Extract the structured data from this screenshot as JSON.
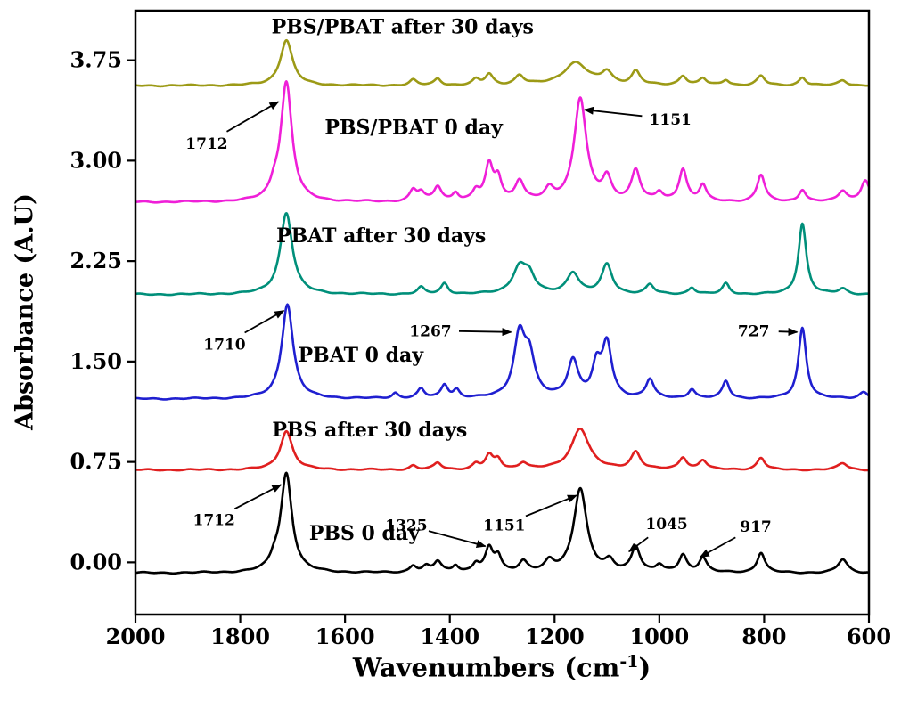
{
  "figure": {
    "background": "#ffffff",
    "frame_color": "#000000"
  },
  "chart_data": {
    "type": "line",
    "title": "",
    "xlabel": "Wavenumbers (cm⁻¹)",
    "xlabel_parts": {
      "pre": "Wavenumbers (cm",
      "sup": "-1",
      "post": ")"
    },
    "ylabel": "Absorbance (A.U)",
    "xlim": [
      2000,
      600
    ],
    "ylim": [
      -0.39,
      4.12
    ],
    "x_axis_reversed": true,
    "grid": false,
    "legend_position": "inline-labels",
    "x_ticks": [
      2000,
      1800,
      1600,
      1400,
      1200,
      1000,
      800,
      600
    ],
    "x_tick_labels": [
      "2000",
      "1800",
      "1600",
      "1400",
      "1200",
      "1000",
      "800",
      "600"
    ],
    "y_ticks": [
      0.0,
      0.75,
      1.5,
      2.25,
      3.0,
      3.75
    ],
    "y_tick_labels": [
      "0.00",
      "0.75",
      "1.50",
      "2.25",
      "3.00",
      "3.75"
    ],
    "peaks_format": "[center_wavenumber_cm-1, amplitude_AU, half_width_cm-1]",
    "series": [
      {
        "name": "PBS 0 day",
        "color": "#000000",
        "baseline": -0.08,
        "label": {
          "text": "PBS 0 day",
          "x": 1563,
          "y": 0.17
        },
        "peaks": [
          [
            1735,
            0.06,
            9
          ],
          [
            1712,
            0.74,
            13
          ],
          [
            1470,
            0.05,
            8
          ],
          [
            1445,
            0.04,
            8
          ],
          [
            1423,
            0.08,
            9
          ],
          [
            1389,
            0.05,
            7
          ],
          [
            1350,
            0.06,
            8
          ],
          [
            1325,
            0.17,
            9
          ],
          [
            1308,
            0.11,
            8
          ],
          [
            1260,
            0.08,
            10
          ],
          [
            1210,
            0.07,
            10
          ],
          [
            1151,
            0.63,
            15
          ],
          [
            1095,
            0.07,
            10
          ],
          [
            1045,
            0.19,
            10
          ],
          [
            1000,
            0.05,
            8
          ],
          [
            955,
            0.13,
            9
          ],
          [
            917,
            0.11,
            9
          ],
          [
            806,
            0.15,
            9
          ],
          [
            650,
            0.1,
            11
          ]
        ]
      },
      {
        "name": "PBS after 30 days",
        "color": "#e01f1f",
        "baseline": 0.69,
        "label": {
          "text": "PBS after 30 days",
          "x": 1553,
          "y": 0.94
        },
        "peaks": [
          [
            1712,
            0.29,
            14
          ],
          [
            1470,
            0.03,
            8
          ],
          [
            1423,
            0.05,
            9
          ],
          [
            1350,
            0.04,
            8
          ],
          [
            1325,
            0.1,
            9
          ],
          [
            1308,
            0.07,
            8
          ],
          [
            1260,
            0.05,
            10
          ],
          [
            1151,
            0.31,
            20
          ],
          [
            1045,
            0.13,
            11
          ],
          [
            955,
            0.09,
            9
          ],
          [
            917,
            0.07,
            9
          ],
          [
            806,
            0.09,
            9
          ],
          [
            650,
            0.05,
            11
          ]
        ]
      },
      {
        "name": "PBAT 0 day",
        "color": "#1f1fd0",
        "baseline": 1.22,
        "label": {
          "text": "PBAT 0 day",
          "x": 1570,
          "y": 1.5
        },
        "peaks": [
          [
            1710,
            0.71,
            13
          ],
          [
            1504,
            0.04,
            7
          ],
          [
            1455,
            0.07,
            8
          ],
          [
            1410,
            0.1,
            8
          ],
          [
            1387,
            0.06,
            7
          ],
          [
            1267,
            0.46,
            13
          ],
          [
            1248,
            0.28,
            12
          ],
          [
            1165,
            0.28,
            12
          ],
          [
            1120,
            0.22,
            10
          ],
          [
            1100,
            0.4,
            11
          ],
          [
            1018,
            0.14,
            9
          ],
          [
            938,
            0.07,
            8
          ],
          [
            873,
            0.13,
            8
          ],
          [
            727,
            0.53,
            9
          ],
          [
            610,
            0.05,
            10
          ]
        ]
      },
      {
        "name": "PBAT after 30 days",
        "color": "#008f7a",
        "baseline": 2.0,
        "label": {
          "text": "PBAT after 30 days",
          "x": 1531,
          "y": 2.39
        },
        "peaks": [
          [
            1712,
            0.61,
            14
          ],
          [
            1455,
            0.05,
            8
          ],
          [
            1410,
            0.08,
            8
          ],
          [
            1267,
            0.2,
            16
          ],
          [
            1248,
            0.12,
            12
          ],
          [
            1165,
            0.16,
            14
          ],
          [
            1100,
            0.22,
            12
          ],
          [
            1018,
            0.07,
            9
          ],
          [
            938,
            0.05,
            8
          ],
          [
            873,
            0.08,
            8
          ],
          [
            727,
            0.53,
            9
          ],
          [
            650,
            0.04,
            10
          ]
        ]
      },
      {
        "name": "PBS/PBAT 0 day",
        "color": "#ef1fd8",
        "baseline": 2.69,
        "label": {
          "text": "PBS/PBAT 0 day",
          "x": 1469,
          "y": 3.2
        },
        "peaks": [
          [
            1735,
            0.07,
            9
          ],
          [
            1712,
            0.89,
            13
          ],
          [
            1470,
            0.08,
            8
          ],
          [
            1455,
            0.06,
            8
          ],
          [
            1423,
            0.11,
            9
          ],
          [
            1389,
            0.06,
            7
          ],
          [
            1350,
            0.07,
            8
          ],
          [
            1325,
            0.26,
            9
          ],
          [
            1308,
            0.16,
            8
          ],
          [
            1267,
            0.15,
            10
          ],
          [
            1210,
            0.08,
            10
          ],
          [
            1151,
            0.77,
            14
          ],
          [
            1100,
            0.16,
            10
          ],
          [
            1045,
            0.23,
            10
          ],
          [
            1000,
            0.06,
            8
          ],
          [
            955,
            0.24,
            9
          ],
          [
            917,
            0.12,
            8
          ],
          [
            806,
            0.2,
            9
          ],
          [
            727,
            0.09,
            8
          ],
          [
            650,
            0.08,
            10
          ],
          [
            607,
            0.16,
            10
          ]
        ]
      },
      {
        "name": "PBS/PBAT after 30 days",
        "color": "#9c9a16",
        "baseline": 3.56,
        "label": {
          "text": "PBS/PBAT after 30 days",
          "x": 1490,
          "y": 3.95
        },
        "peaks": [
          [
            1712,
            0.34,
            14
          ],
          [
            1470,
            0.04,
            8
          ],
          [
            1423,
            0.05,
            8
          ],
          [
            1350,
            0.04,
            8
          ],
          [
            1325,
            0.08,
            9
          ],
          [
            1267,
            0.07,
            10
          ],
          [
            1160,
            0.17,
            28
          ],
          [
            1100,
            0.09,
            12
          ],
          [
            1045,
            0.1,
            10
          ],
          [
            955,
            0.07,
            9
          ],
          [
            917,
            0.05,
            8
          ],
          [
            873,
            0.04,
            8
          ],
          [
            806,
            0.07,
            9
          ],
          [
            727,
            0.06,
            8
          ],
          [
            650,
            0.04,
            10
          ]
        ]
      }
    ],
    "annotations": [
      {
        "text": "1712",
        "series": "PBS/PBAT 0 day",
        "text_x": 1864,
        "text_y": 3.13,
        "tip_x": 1727,
        "tip_y": 3.44
      },
      {
        "text": "1151",
        "series": "PBS/PBAT 0 day",
        "text_x": 979,
        "text_y": 3.31,
        "tip_x": 1143,
        "tip_y": 3.38,
        "offset": 32
      },
      {
        "text": "1710",
        "series": "PBAT 0 day",
        "text_x": 1830,
        "text_y": 1.63,
        "tip_x": 1717,
        "tip_y": 1.88
      },
      {
        "text": "1267",
        "series": "PBAT 0 day",
        "text_x": 1437,
        "text_y": 1.73,
        "tip_x": 1283,
        "tip_y": 1.72,
        "offset": 32
      },
      {
        "text": "727",
        "series": "PBAT 0 day",
        "text_x": 820,
        "text_y": 1.73,
        "tip_x": 737,
        "tip_y": 1.72,
        "offset": 28
      },
      {
        "text": "1712",
        "series": "PBS 0 day",
        "text_x": 1850,
        "text_y": 0.32,
        "tip_x": 1722,
        "tip_y": 0.58
      },
      {
        "text": "1325",
        "series": "PBS 0 day",
        "text_x": 1483,
        "text_y": 0.28,
        "tip_x": 1332,
        "tip_y": 0.12
      },
      {
        "text": "1151",
        "series": "PBS 0 day",
        "text_x": 1296,
        "text_y": 0.28,
        "tip_x": 1158,
        "tip_y": 0.5
      },
      {
        "text": "1045",
        "series": "PBS 0 day",
        "text_x": 986,
        "text_y": 0.29,
        "tip_x": 1058,
        "tip_y": 0.08
      },
      {
        "text": "917",
        "series": "PBS 0 day",
        "text_x": 816,
        "text_y": 0.27,
        "tip_x": 922,
        "tip_y": 0.04
      }
    ]
  }
}
